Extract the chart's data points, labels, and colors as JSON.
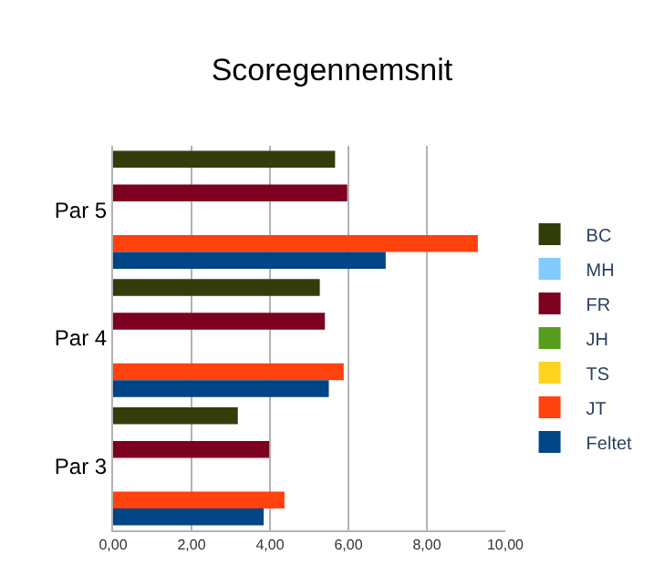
{
  "chart_data": {
    "type": "bar",
    "orientation": "horizontal",
    "title": "Scoregennemsnit",
    "categories": [
      "Par 5",
      "Par 4",
      "Par 3"
    ],
    "series": [
      {
        "name": "BC",
        "color": "#333d0a",
        "values": [
          5.66,
          5.27,
          3.18
        ]
      },
      {
        "name": "MH",
        "color": "#83caff",
        "values": [
          null,
          null,
          null
        ]
      },
      {
        "name": "FR",
        "color": "#7e0021",
        "values": [
          5.97,
          5.4,
          3.98
        ]
      },
      {
        "name": "JH",
        "color": "#579d1c",
        "values": [
          null,
          null,
          null
        ]
      },
      {
        "name": "TS",
        "color": "#ffd320",
        "values": [
          null,
          null,
          null
        ]
      },
      {
        "name": "JT",
        "color": "#ff420e",
        "values": [
          9.3,
          5.88,
          4.37
        ]
      },
      {
        "name": "Feltet",
        "color": "#004586",
        "values": [
          6.95,
          5.5,
          3.84
        ]
      }
    ],
    "xlim": [
      0,
      10
    ],
    "xticks": [
      {
        "value": 0,
        "label": "0,00"
      },
      {
        "value": 2,
        "label": "2,00"
      },
      {
        "value": 4,
        "label": "4,00"
      },
      {
        "value": 6,
        "label": "6,00"
      },
      {
        "value": 8,
        "label": "8,00"
      },
      {
        "value": 10,
        "label": "10,00"
      }
    ],
    "grid": "x",
    "legend": "right"
  }
}
